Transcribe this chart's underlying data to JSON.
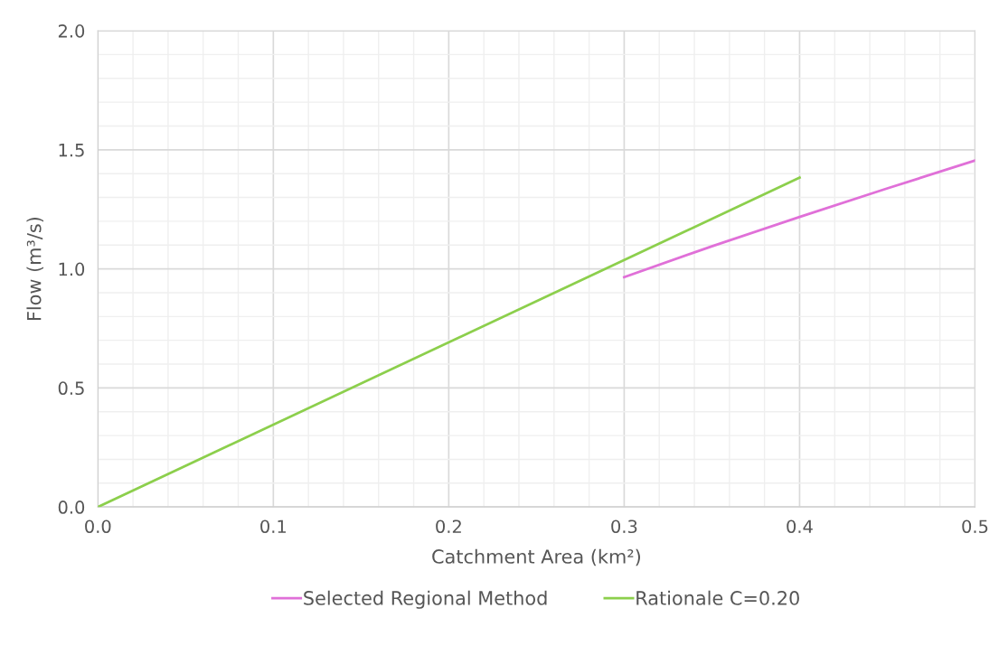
{
  "chart_data": {
    "type": "line",
    "xlabel": "Catchment Area (km²)",
    "ylabel": "Flow (m³/s)",
    "xlim": [
      0,
      0.5
    ],
    "xticks": [
      {
        "value": 0,
        "label": "0.0"
      },
      0.1,
      0.2,
      0.3,
      0.4,
      0.5
    ],
    "ylim": [
      0,
      2
    ],
    "yticks": [
      {
        "value": 0,
        "label": "0.0"
      },
      {
        "value": 0.5,
        "label": "0.5"
      },
      {
        "value": 1,
        "label": "1.0"
      },
      {
        "value": 1.5,
        "label": "1.5"
      },
      {
        "value": 2,
        "label": "2.0"
      }
    ],
    "grid": true,
    "legend": "bottom",
    "marker": "none",
    "line_style": "solid",
    "series": [
      {
        "name": "Selected Regional Method",
        "color": "#e070d8",
        "x": [
          0.3,
          0.35,
          0.4,
          0.45,
          0.5
        ],
        "values": [
          0.965,
          1.095,
          1.218,
          1.338,
          1.455
        ]
      },
      {
        "name": "Rationale C=0.20",
        "color": "#8ccf4c",
        "x": [
          0,
          0.4
        ],
        "values": [
          0,
          1.383
        ]
      }
    ]
  }
}
